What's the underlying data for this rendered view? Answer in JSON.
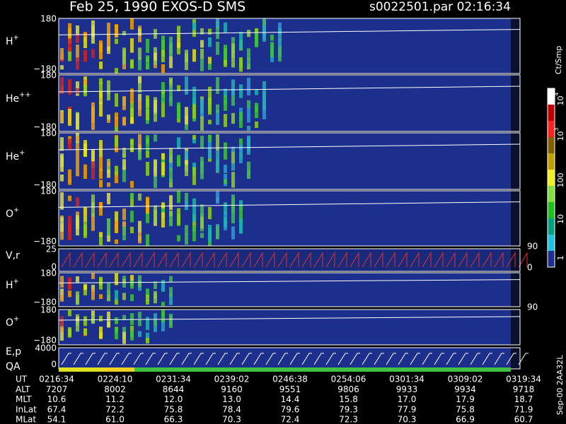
{
  "header": {
    "title": "Feb 25, 1990   EXOS-D SMS",
    "file": "s0022501.par  02:16:34"
  },
  "panels": [
    {
      "label": {
        "base": "H",
        "sup": "+"
      },
      "ticks": [
        "180",
        "−180"
      ]
    },
    {
      "label": {
        "base": "He",
        "sup": "++"
      },
      "ticks": [
        "180",
        "−180"
      ]
    },
    {
      "label": {
        "base": "He",
        "sup": "+"
      },
      "ticks": [
        "180",
        "−180"
      ]
    },
    {
      "label": {
        "base": "O",
        "sup": "+"
      },
      "ticks": [
        "180",
        "−180"
      ]
    },
    {
      "label": {
        "base": "V,r",
        "sup": ""
      },
      "ticks": [
        "25",
        "0"
      ],
      "right_ticks": [
        "90",
        "0"
      ]
    },
    {
      "label": {
        "base": "H",
        "sup": "+"
      },
      "ticks": [
        "180",
        "−180"
      ]
    },
    {
      "label": {
        "base": "O",
        "sup": "+"
      },
      "ticks": [
        "180",
        "−180"
      ],
      "right_ticks": [
        "90"
      ]
    },
    {
      "label": {
        "base": "E,p",
        "sup": ""
      },
      "ticks": [
        "4000",
        "0"
      ]
    }
  ],
  "qa_label": "QA",
  "colorbar": {
    "title": "Ct/Smp",
    "labels": [
      {
        "base": "10",
        "sup": "4"
      },
      {
        "base": "10",
        "sup": "3"
      },
      {
        "base": "100",
        "sup": ""
      },
      {
        "base": "10",
        "sup": ""
      },
      {
        "base": "1",
        "sup": ""
      }
    ]
  },
  "footer_id": "Sep-00  2AA32L",
  "table": {
    "rows": [
      {
        "label": "UT",
        "values": [
          "0216:34",
          "0224:10",
          "0231:34",
          "0239:02",
          "0246:38",
          "0254:06",
          "0301:34",
          "0309:02",
          "0319:34"
        ]
      },
      {
        "label": "ALT",
        "values": [
          "7207",
          "8002",
          "8644",
          "9160",
          "9551",
          "9806",
          "9933",
          "9934",
          "9718"
        ]
      },
      {
        "label": "MLT",
        "values": [
          "10.6",
          "11.2",
          "12.0",
          "13.0",
          "14.4",
          "15.8",
          "17.0",
          "17.9",
          "18.7"
        ]
      },
      {
        "label": "InLat",
        "values": [
          "67.4",
          "72.2",
          "75.8",
          "78.4",
          "79.6",
          "79.3",
          "77.9",
          "75.8",
          "71.9"
        ]
      },
      {
        "label": "MLat",
        "values": [
          "54.1",
          "61.0",
          "66.3",
          "70.3",
          "72.4",
          "72.3",
          "70.3",
          "66.9",
          "60.7"
        ]
      }
    ]
  }
}
